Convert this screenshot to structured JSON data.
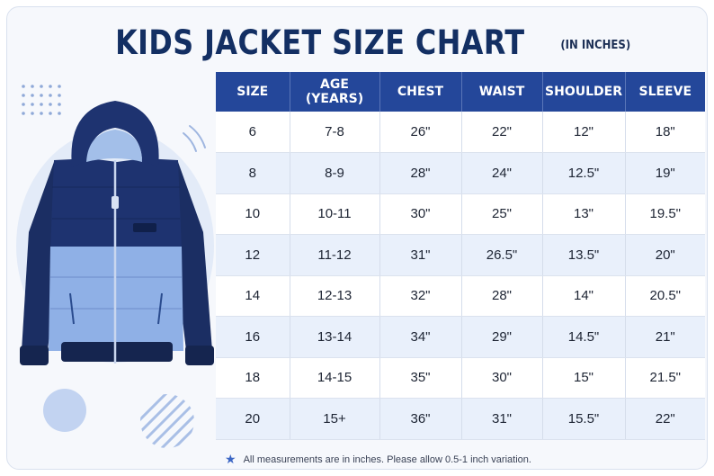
{
  "title": {
    "main": "KIDS JACKET SIZE CHART",
    "sub": "(IN INCHES)"
  },
  "table": {
    "headers": [
      "SIZE",
      "AGE (YEARS)",
      "CHEST",
      "WAIST",
      "SHOULDER",
      "SLEEVE"
    ],
    "rows": [
      [
        "6",
        "7-8",
        "26\"",
        "22\"",
        "12\"",
        "18\""
      ],
      [
        "8",
        "8-9",
        "28\"",
        "24\"",
        "12.5\"",
        "19\""
      ],
      [
        "10",
        "10-11",
        "30\"",
        "25\"",
        "13\"",
        "19.5\""
      ],
      [
        "12",
        "11-12",
        "31\"",
        "26.5\"",
        "13.5\"",
        "20\""
      ],
      [
        "14",
        "12-13",
        "32\"",
        "28\"",
        "14\"",
        "20.5\""
      ],
      [
        "16",
        "13-14",
        "34\"",
        "29\"",
        "14.5\"",
        "21\""
      ],
      [
        "18",
        "14-15",
        "35\"",
        "30\"",
        "15\"",
        "21.5\""
      ],
      [
        "20",
        "15+",
        "36\"",
        "31\"",
        "15.5\"",
        "22\""
      ]
    ]
  },
  "footnote": {
    "icon": "star-icon",
    "text": "All measurements are in inches. Please allow 0.5-1 inch variation."
  },
  "colors": {
    "header_bg": "#24479a",
    "title": "#132f63",
    "row_alt": "#e9f0fb",
    "jacket_dark": "#1b2e63",
    "jacket_light": "#8fb0e6"
  }
}
